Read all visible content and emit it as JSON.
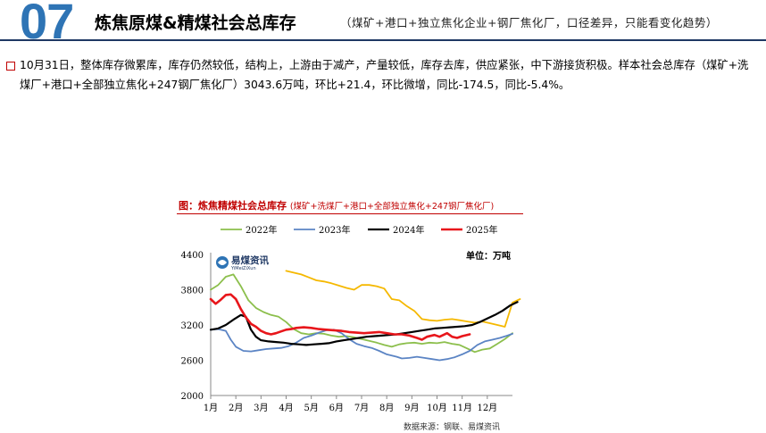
{
  "header": {
    "number": "07",
    "title": "炼焦原煤&精煤社会总库存",
    "subtitle": "（煤矿+港口+独立焦化企业+钢厂焦化厂，口径差异，只能看变化趋势）"
  },
  "body_text": "10月31日，整体库存微累库，库存仍然较低，结构上，上游由于减产，产量较低，库存去库，供应紧张，中下游接货积极。样本社会总库存（煤矿+洗煤厂+港口+全部独立焦化+247钢厂焦化厂）3043.6万吨，环比+21.4，环比微增，同比-174.5，同比-5.4%。",
  "chart_header": {
    "title": "图：炼焦精煤社会总库存",
    "subtitle": "(煤矿+洗煤厂+港口+全部独立焦化+247钢厂焦化厂)"
  },
  "source": "数据来源：钢联、易煤资讯",
  "chart_data": {
    "type": "line",
    "unit_label": "单位：万吨",
    "watermark": "易煤资讯",
    "watermark_sub": "YiMeiZiXun",
    "ylim": [
      2000,
      4400
    ],
    "yticks": [
      2000,
      2600,
      3200,
      3800,
      4400
    ],
    "xlim": [
      1,
      13
    ],
    "xticks": [
      "1月",
      "2月",
      "3月",
      "4月",
      "5月",
      "6月",
      "7月",
      "8月",
      "9月",
      "10月",
      "11月",
      "12月"
    ],
    "series": [
      {
        "name": "2022年",
        "color": "#8cbf4c",
        "width": 1.8,
        "points": [
          [
            1.0,
            3800
          ],
          [
            1.3,
            3880
          ],
          [
            1.6,
            4020
          ],
          [
            1.9,
            4060
          ],
          [
            2.2,
            3860
          ],
          [
            2.5,
            3620
          ],
          [
            2.8,
            3490
          ],
          [
            3.1,
            3420
          ],
          [
            3.4,
            3370
          ],
          [
            3.7,
            3340
          ],
          [
            4.0,
            3250
          ],
          [
            4.3,
            3130
          ],
          [
            4.6,
            3060
          ],
          [
            4.9,
            3040
          ],
          [
            5.2,
            3060
          ],
          [
            5.5,
            3050
          ],
          [
            5.8,
            3020
          ],
          [
            6.1,
            3000
          ],
          [
            6.4,
            3010
          ],
          [
            6.7,
            2990
          ],
          [
            7.0,
            2960
          ],
          [
            7.3,
            2930
          ],
          [
            7.6,
            2900
          ],
          [
            7.9,
            2860
          ],
          [
            8.2,
            2830
          ],
          [
            8.5,
            2870
          ],
          [
            8.8,
            2890
          ],
          [
            9.1,
            2900
          ],
          [
            9.4,
            2880
          ],
          [
            9.7,
            2900
          ],
          [
            10.0,
            2890
          ],
          [
            10.3,
            2910
          ],
          [
            10.6,
            2880
          ],
          [
            10.9,
            2860
          ],
          [
            11.2,
            2800
          ],
          [
            11.5,
            2740
          ],
          [
            11.8,
            2780
          ],
          [
            12.1,
            2800
          ],
          [
            12.4,
            2880
          ],
          [
            12.7,
            2960
          ],
          [
            13.0,
            3060
          ]
        ]
      },
      {
        "name": "2023年",
        "color": "#5b84c4",
        "width": 1.8,
        "points": [
          [
            1.0,
            3120
          ],
          [
            1.3,
            3130
          ],
          [
            1.6,
            3100
          ],
          [
            1.8,
            2950
          ],
          [
            2.0,
            2830
          ],
          [
            2.3,
            2760
          ],
          [
            2.6,
            2750
          ],
          [
            2.9,
            2770
          ],
          [
            3.2,
            2790
          ],
          [
            3.5,
            2800
          ],
          [
            3.8,
            2810
          ],
          [
            4.1,
            2840
          ],
          [
            4.4,
            2900
          ],
          [
            4.7,
            2980
          ],
          [
            5.0,
            3020
          ],
          [
            5.3,
            3070
          ],
          [
            5.6,
            3110
          ],
          [
            5.9,
            3120
          ],
          [
            6.2,
            3060
          ],
          [
            6.5,
            2960
          ],
          [
            6.8,
            2880
          ],
          [
            7.1,
            2840
          ],
          [
            7.4,
            2810
          ],
          [
            7.7,
            2760
          ],
          [
            8.0,
            2700
          ],
          [
            8.2,
            2680
          ],
          [
            8.4,
            2660
          ],
          [
            8.6,
            2630
          ],
          [
            8.9,
            2640
          ],
          [
            9.2,
            2660
          ],
          [
            9.5,
            2640
          ],
          [
            9.8,
            2620
          ],
          [
            10.1,
            2600
          ],
          [
            10.4,
            2620
          ],
          [
            10.7,
            2650
          ],
          [
            11.0,
            2700
          ],
          [
            11.3,
            2760
          ],
          [
            11.6,
            2860
          ],
          [
            11.9,
            2920
          ],
          [
            12.2,
            2950
          ],
          [
            12.5,
            2980
          ],
          [
            12.8,
            3020
          ],
          [
            13.0,
            3050
          ]
        ]
      },
      {
        "name": "2024年",
        "color": "#000000",
        "width": 2.2,
        "points": [
          [
            1.0,
            3120
          ],
          [
            1.3,
            3140
          ],
          [
            1.6,
            3200
          ],
          [
            1.9,
            3290
          ],
          [
            2.2,
            3370
          ],
          [
            2.4,
            3340
          ],
          [
            2.6,
            3120
          ],
          [
            2.8,
            3000
          ],
          [
            3.0,
            2940
          ],
          [
            3.3,
            2920
          ],
          [
            3.6,
            2910
          ],
          [
            3.9,
            2900
          ],
          [
            4.2,
            2880
          ],
          [
            4.5,
            2870
          ],
          [
            4.8,
            2860
          ],
          [
            5.1,
            2870
          ],
          [
            5.4,
            2880
          ],
          [
            5.7,
            2890
          ],
          [
            6.0,
            2920
          ],
          [
            6.3,
            2940
          ],
          [
            6.6,
            2960
          ],
          [
            6.9,
            2980
          ],
          [
            7.2,
            3000
          ],
          [
            7.5,
            3010
          ],
          [
            7.8,
            3020
          ],
          [
            8.1,
            3030
          ],
          [
            8.4,
            3040
          ],
          [
            8.7,
            3060
          ],
          [
            9.0,
            3080
          ],
          [
            9.3,
            3100
          ],
          [
            9.6,
            3120
          ],
          [
            9.9,
            3140
          ],
          [
            10.2,
            3150
          ],
          [
            10.5,
            3160
          ],
          [
            10.8,
            3170
          ],
          [
            11.1,
            3180
          ],
          [
            11.4,
            3200
          ],
          [
            11.7,
            3250
          ],
          [
            12.0,
            3310
          ],
          [
            12.3,
            3370
          ],
          [
            12.6,
            3440
          ],
          [
            12.9,
            3530
          ],
          [
            13.2,
            3590
          ]
        ]
      },
      {
        "name": "2025年",
        "color": "#e8161b",
        "width": 2.6,
        "points": [
          [
            1.0,
            3640
          ],
          [
            1.2,
            3560
          ],
          [
            1.4,
            3630
          ],
          [
            1.6,
            3710
          ],
          [
            1.8,
            3720
          ],
          [
            2.0,
            3640
          ],
          [
            2.2,
            3470
          ],
          [
            2.4,
            3330
          ],
          [
            2.6,
            3220
          ],
          [
            2.8,
            3170
          ],
          [
            3.0,
            3100
          ],
          [
            3.2,
            3060
          ],
          [
            3.4,
            3040
          ],
          [
            3.6,
            3060
          ],
          [
            3.8,
            3090
          ],
          [
            4.0,
            3120
          ],
          [
            4.2,
            3130
          ],
          [
            4.4,
            3150
          ],
          [
            4.7,
            3160
          ],
          [
            5.0,
            3150
          ],
          [
            5.3,
            3130
          ],
          [
            5.6,
            3120
          ],
          [
            5.9,
            3110
          ],
          [
            6.2,
            3100
          ],
          [
            6.5,
            3080
          ],
          [
            6.8,
            3070
          ],
          [
            7.1,
            3060
          ],
          [
            7.4,
            3070
          ],
          [
            7.7,
            3080
          ],
          [
            8.0,
            3060
          ],
          [
            8.3,
            3040
          ],
          [
            8.6,
            3040
          ],
          [
            8.9,
            3020
          ],
          [
            9.2,
            2980
          ],
          [
            9.4,
            2950
          ],
          [
            9.6,
            3000
          ],
          [
            9.9,
            3030
          ],
          [
            10.1,
            3000
          ],
          [
            10.4,
            3060
          ],
          [
            10.6,
            3000
          ],
          [
            10.8,
            2980
          ],
          [
            11.0,
            3010
          ],
          [
            11.3,
            3040
          ]
        ]
      }
    ],
    "yellow_series": {
      "name": "",
      "color": "#f5b800",
      "width": 1.8,
      "points": [
        [
          4.0,
          4120
        ],
        [
          4.3,
          4090
        ],
        [
          4.6,
          4060
        ],
        [
          4.9,
          4010
        ],
        [
          5.2,
          3960
        ],
        [
          5.5,
          3940
        ],
        [
          5.8,
          3910
        ],
        [
          6.1,
          3870
        ],
        [
          6.4,
          3830
        ],
        [
          6.7,
          3800
        ],
        [
          7.0,
          3880
        ],
        [
          7.3,
          3880
        ],
        [
          7.6,
          3860
        ],
        [
          7.9,
          3820
        ],
        [
          8.2,
          3640
        ],
        [
          8.5,
          3620
        ],
        [
          8.8,
          3520
        ],
        [
          9.1,
          3440
        ],
        [
          9.4,
          3300
        ],
        [
          9.7,
          3280
        ],
        [
          10.0,
          3270
        ],
        [
          10.3,
          3290
        ],
        [
          10.6,
          3300
        ],
        [
          10.9,
          3280
        ],
        [
          11.2,
          3260
        ],
        [
          11.5,
          3240
        ],
        [
          11.8,
          3260
        ],
        [
          12.1,
          3230
        ],
        [
          12.4,
          3200
        ],
        [
          12.7,
          3170
        ],
        [
          13.0,
          3580
        ],
        [
          13.3,
          3640
        ]
      ]
    }
  }
}
